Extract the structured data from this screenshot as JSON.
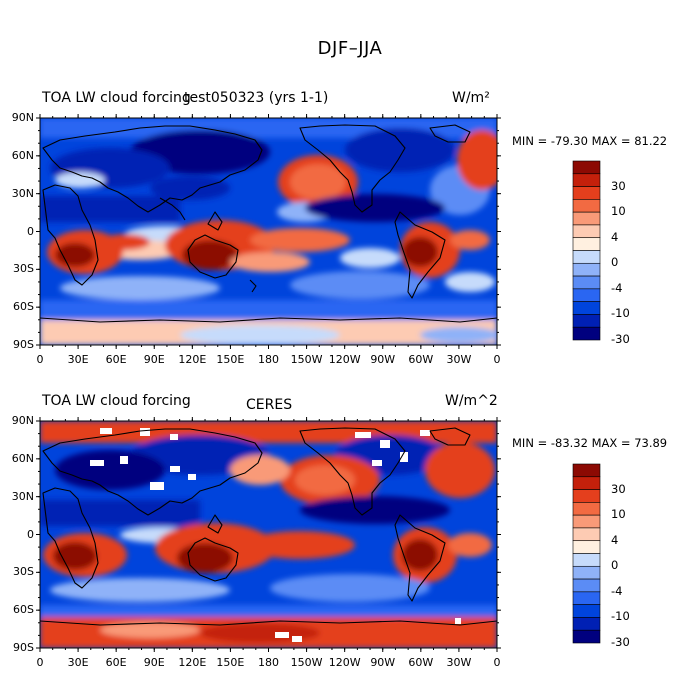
{
  "main_title": "DJF–JJA",
  "colors": {
    "scale": [
      "#00007f",
      "#0020b4",
      "#0044dc",
      "#2a66f2",
      "#5b8cf5",
      "#8fb2f8",
      "#c6dbfb",
      "#fff0e0",
      "#fdcbb3",
      "#f99a78",
      "#f26a42",
      "#e43f1d",
      "#c4200b",
      "#8c0a03"
    ],
    "land": "#000000"
  },
  "panels": [
    {
      "title_left": "TOA LW cloud forcing",
      "title_center": "test050323 (yrs 1-1)",
      "units": "W/m²",
      "stats": "MIN = -79.30  MAX =  81.22",
      "lat_labels": [
        "90N",
        "60N",
        "30N",
        "0",
        "30S",
        "60S",
        "90S"
      ],
      "lon_labels": [
        "0",
        "30E",
        "60E",
        "90E",
        "120E",
        "150E",
        "180",
        "150W",
        "120W",
        "90W",
        "60W",
        "30W",
        "0"
      ],
      "colorbar_labels": [
        "30",
        "10",
        "4",
        "0",
        "-4",
        "-10",
        "-30"
      ]
    },
    {
      "title_left": "TOA LW cloud forcing",
      "title_center": "CERES",
      "units": "W/m^2",
      "stats": "MIN = -83.32  MAX =  73.89",
      "lat_labels": [
        "90N",
        "60N",
        "30N",
        "0",
        "30S",
        "60S",
        "90S"
      ],
      "lon_labels": [
        "0",
        "30E",
        "60E",
        "90E",
        "120E",
        "150E",
        "180",
        "150W",
        "120W",
        "90W",
        "60W",
        "30W",
        "0"
      ],
      "colorbar_labels": [
        "30",
        "10",
        "4",
        "0",
        "-4",
        "-10",
        "-30"
      ]
    }
  ]
}
